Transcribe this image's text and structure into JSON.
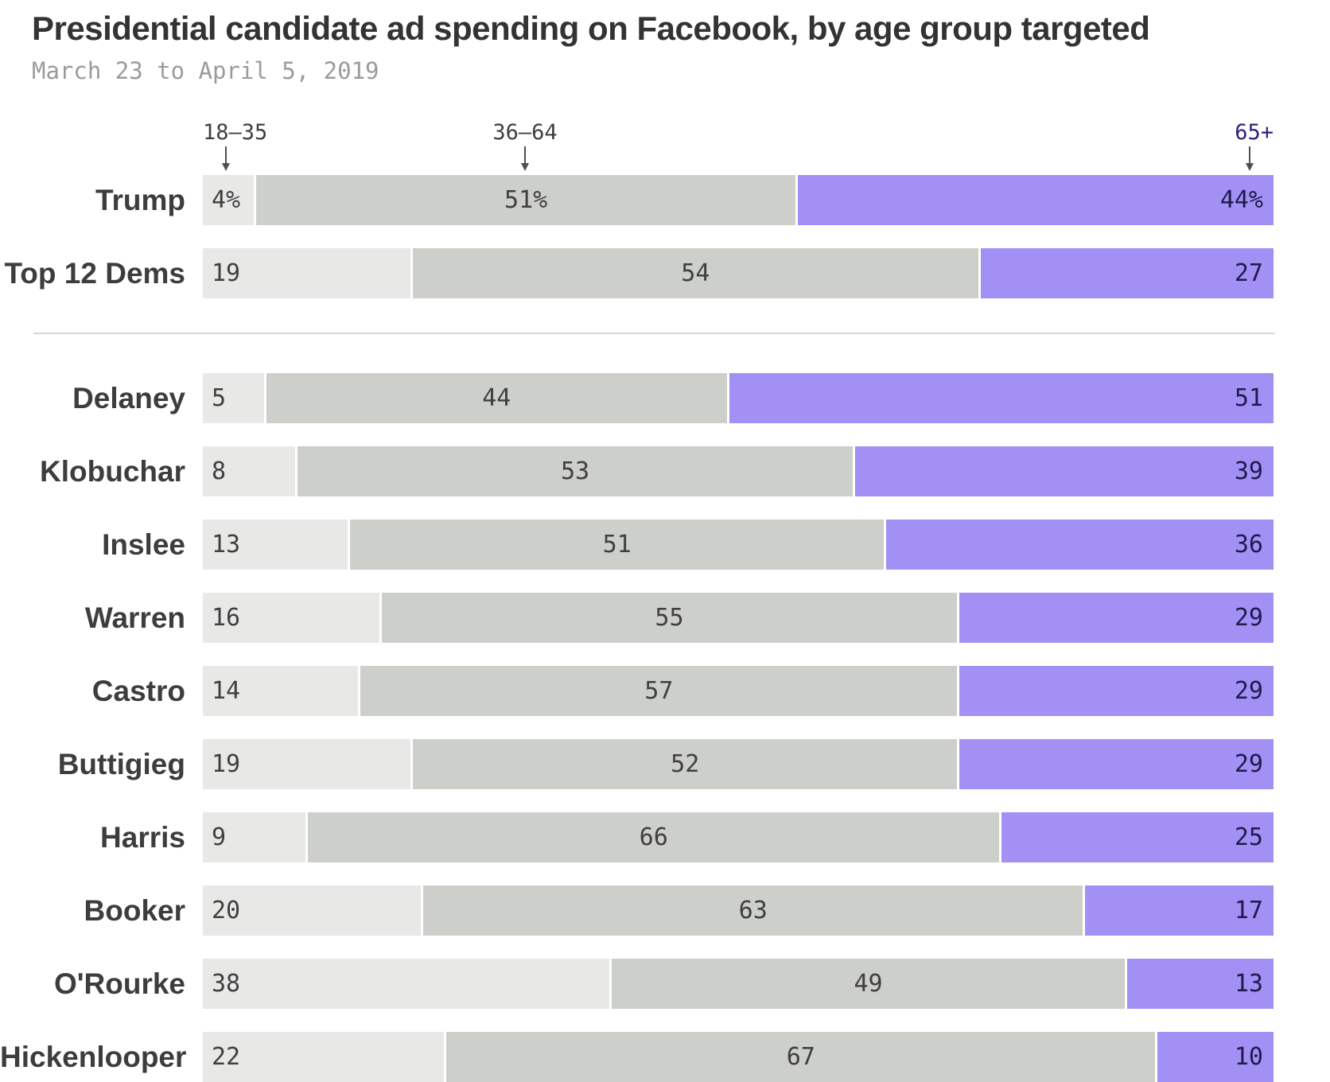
{
  "header": {
    "title": "Presidential candidate ad spending on Facebook, by age group targeted",
    "subtitle": "March 23 to April 5, 2019"
  },
  "chart_data": {
    "type": "bar",
    "orientation": "horizontal",
    "stacked": true,
    "unit": "percent",
    "title": "Presidential candidate ad spending on Facebook, by age group targeted",
    "subtitle": "March 23 to April 5, 2019",
    "age_groups": [
      {
        "label": "18–35",
        "color": "#e8e9e7",
        "label_color": "#3f3f3f",
        "value_text_color": "#3f3f3f"
      },
      {
        "label": "36–64",
        "color": "#cdcfca",
        "label_color": "#3f3f3f",
        "value_text_color": "#3f3f3f"
      },
      {
        "label": "65+",
        "color": "#a390f4",
        "label_color": "#2d2182",
        "value_text_color": "#1f1a4e"
      }
    ],
    "groups": [
      {
        "name": "summary",
        "rows": [
          {
            "name": "Trump",
            "values": [
              4,
              51,
              44
            ],
            "display": [
              "4%",
              "51%",
              "44%"
            ]
          },
          {
            "name": "Top 12 Dems",
            "values": [
              19,
              54,
              27
            ]
          }
        ]
      },
      {
        "name": "democrats",
        "rows": [
          {
            "name": "Delaney",
            "values": [
              5,
              44,
              51
            ]
          },
          {
            "name": "Klobuchar",
            "values": [
              8,
              53,
              39
            ]
          },
          {
            "name": "Inslee",
            "values": [
              13,
              51,
              36
            ]
          },
          {
            "name": "Warren",
            "values": [
              16,
              55,
              29
            ]
          },
          {
            "name": "Castro",
            "values": [
              14,
              57,
              29
            ]
          },
          {
            "name": "Buttigieg",
            "values": [
              19,
              52,
              29
            ]
          },
          {
            "name": "Harris",
            "values": [
              9,
              66,
              25
            ]
          },
          {
            "name": "Booker",
            "values": [
              20,
              63,
              17
            ]
          },
          {
            "name": "O'Rourke",
            "values": [
              38,
              49,
              13
            ]
          },
          {
            "name": "Hickenlooper",
            "values": [
              22,
              67,
              10
            ]
          }
        ]
      }
    ]
  }
}
